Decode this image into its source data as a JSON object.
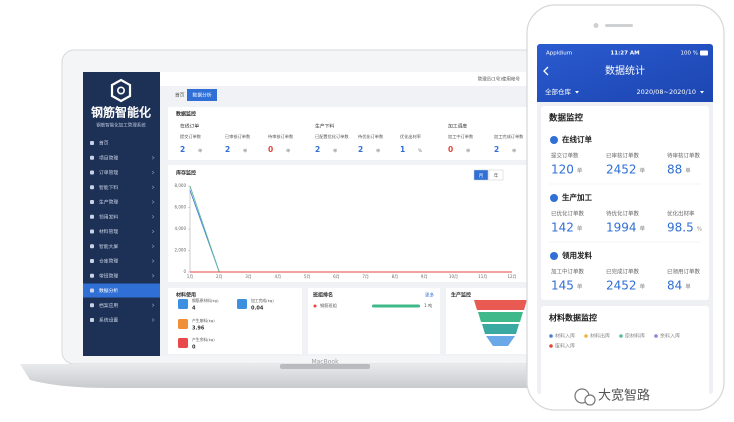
{
  "laptop": {
    "brand": "MacBook",
    "logo_title": "钢筋智能化",
    "logo_subtitle": "钢筋智能化加工管理系统",
    "user": "管理员(1号)使用帐号",
    "menu": [
      "首页",
      "项目管理",
      "订单管理",
      "智能下料",
      "生产管理",
      "领用发料",
      "材料管理",
      "智能大屏",
      "仓库管理",
      "带班管理",
      "数据分析",
      "档案应用",
      "系统设置"
    ],
    "tabs": [
      "首页",
      "数据分析"
    ],
    "monitor": {
      "title": "数据监控",
      "groups": [
        {
          "name": "在线订单",
          "items": [
            {
              "label": "提交订单数",
              "value": 2,
              "unit": "单"
            },
            {
              "label": "已审核订单数",
              "value": 2,
              "unit": "单"
            },
            {
              "label": "待审核订单数",
              "value": 0,
              "unit": "单"
            }
          ]
        },
        {
          "name": "生产下料",
          "items": [
            {
              "label": "已配置优化订单数",
              "value": 2,
              "unit": "单"
            },
            {
              "label": "待优化订单数",
              "value": 2,
              "unit": "单"
            },
            {
              "label": "优化出材率",
              "value": 1,
              "unit": "%"
            }
          ]
        },
        {
          "name": "加工调度",
          "items": [
            {
              "label": "加工中订单数",
              "value": 0,
              "unit": "单"
            },
            {
              "label": "加工完成订单数",
              "value": 2,
              "unit": "单"
            }
          ]
        }
      ]
    },
    "inventory_chart": {
      "type": "line",
      "title": "库存监控",
      "buttons": [
        "月",
        "年"
      ],
      "categories": [
        "1月",
        "2月",
        "3月",
        "4月",
        "5月",
        "6月",
        "7月",
        "8月",
        "9月",
        "10月",
        "11月",
        "12月"
      ],
      "series": [
        {
          "color": "#4a7fd4",
          "values": [
            7600,
            0,
            0,
            0,
            0,
            0,
            0,
            0,
            0,
            0,
            0,
            0
          ]
        },
        {
          "color": "#5fb89a",
          "values": [
            8000,
            0,
            0,
            0,
            0,
            0,
            0,
            0,
            0,
            0,
            0,
            0
          ]
        },
        {
          "color": "#e0463c",
          "values": [
            0,
            0,
            0,
            0,
            0,
            0,
            0,
            0,
            0,
            0,
            0,
            0
          ]
        }
      ],
      "ylim": [
        0,
        8000
      ],
      "yticks": [
        0,
        {
          "value": 2000,
          "label": "2,000"
        },
        {
          "value": 4000,
          "label": "4,000"
        },
        {
          "value": 6000,
          "label": "6,000"
        },
        {
          "value": 8000,
          "label": "8,000"
        }
      ]
    },
    "materials": {
      "title": "材料使用",
      "items": [
        {
          "label": "钢筋原材料(kg)",
          "value": 4,
          "color": "#3d8fe0"
        },
        {
          "label": "加工完成(kg)",
          "value": 0.04,
          "color": "#3d8fe0"
        },
        {
          "label": "产生废料(kg)",
          "value": 3.96,
          "color": "#f0913a"
        },
        {
          "label": "产生余料(kg)",
          "value": 0,
          "color": "#e84a4a"
        }
      ]
    },
    "ranking": {
      "title": "班组排名",
      "more": "更多",
      "rows": [
        {
          "name": "钢筋班组",
          "value": 1,
          "unit": "吨"
        }
      ]
    },
    "production": {
      "title": "生产监控"
    }
  },
  "phone": {
    "carrier": "Appldium",
    "time": "11:27 AM",
    "battery": "100 %",
    "title": "数据统计",
    "warehouse": "全部仓库",
    "date_range": "2020/08~2020/10",
    "monitor_title": "数据监控",
    "groups": [
      {
        "name": "在线订单",
        "items": [
          {
            "label": "提交订单数",
            "value": 120,
            "unit": "单"
          },
          {
            "label": "已审核订单数",
            "value": 2452,
            "unit": "单"
          },
          {
            "label": "待审核订单数",
            "value": 88,
            "unit": "单"
          }
        ]
      },
      {
        "name": "生产加工",
        "items": [
          {
            "label": "已优化订单数",
            "value": 142,
            "unit": "单"
          },
          {
            "label": "待优化订单数",
            "value": 1994,
            "unit": "单"
          },
          {
            "label": "优化出材率",
            "value": 98.5,
            "unit": "%"
          }
        ]
      },
      {
        "name": "领用发料",
        "items": [
          {
            "label": "加工中订单数",
            "value": 145,
            "unit": "单"
          },
          {
            "label": "已完成订单数",
            "value": 2452,
            "unit": "单"
          },
          {
            "label": "已领用订单数",
            "value": 84,
            "unit": "单"
          }
        ]
      }
    ],
    "material_title": "材料数据监控",
    "legend": [
      {
        "name": "材料入库",
        "color": "#4a7fd4"
      },
      {
        "name": "材料出库",
        "color": "#f0b43a"
      },
      {
        "name": "原材料库",
        "color": "#5fb89a"
      },
      {
        "name": "余料入库",
        "color": "#9b7ad8"
      },
      {
        "name": "废料入库",
        "color": "#e0463c"
      }
    ]
  },
  "watermark": "大宽智路"
}
